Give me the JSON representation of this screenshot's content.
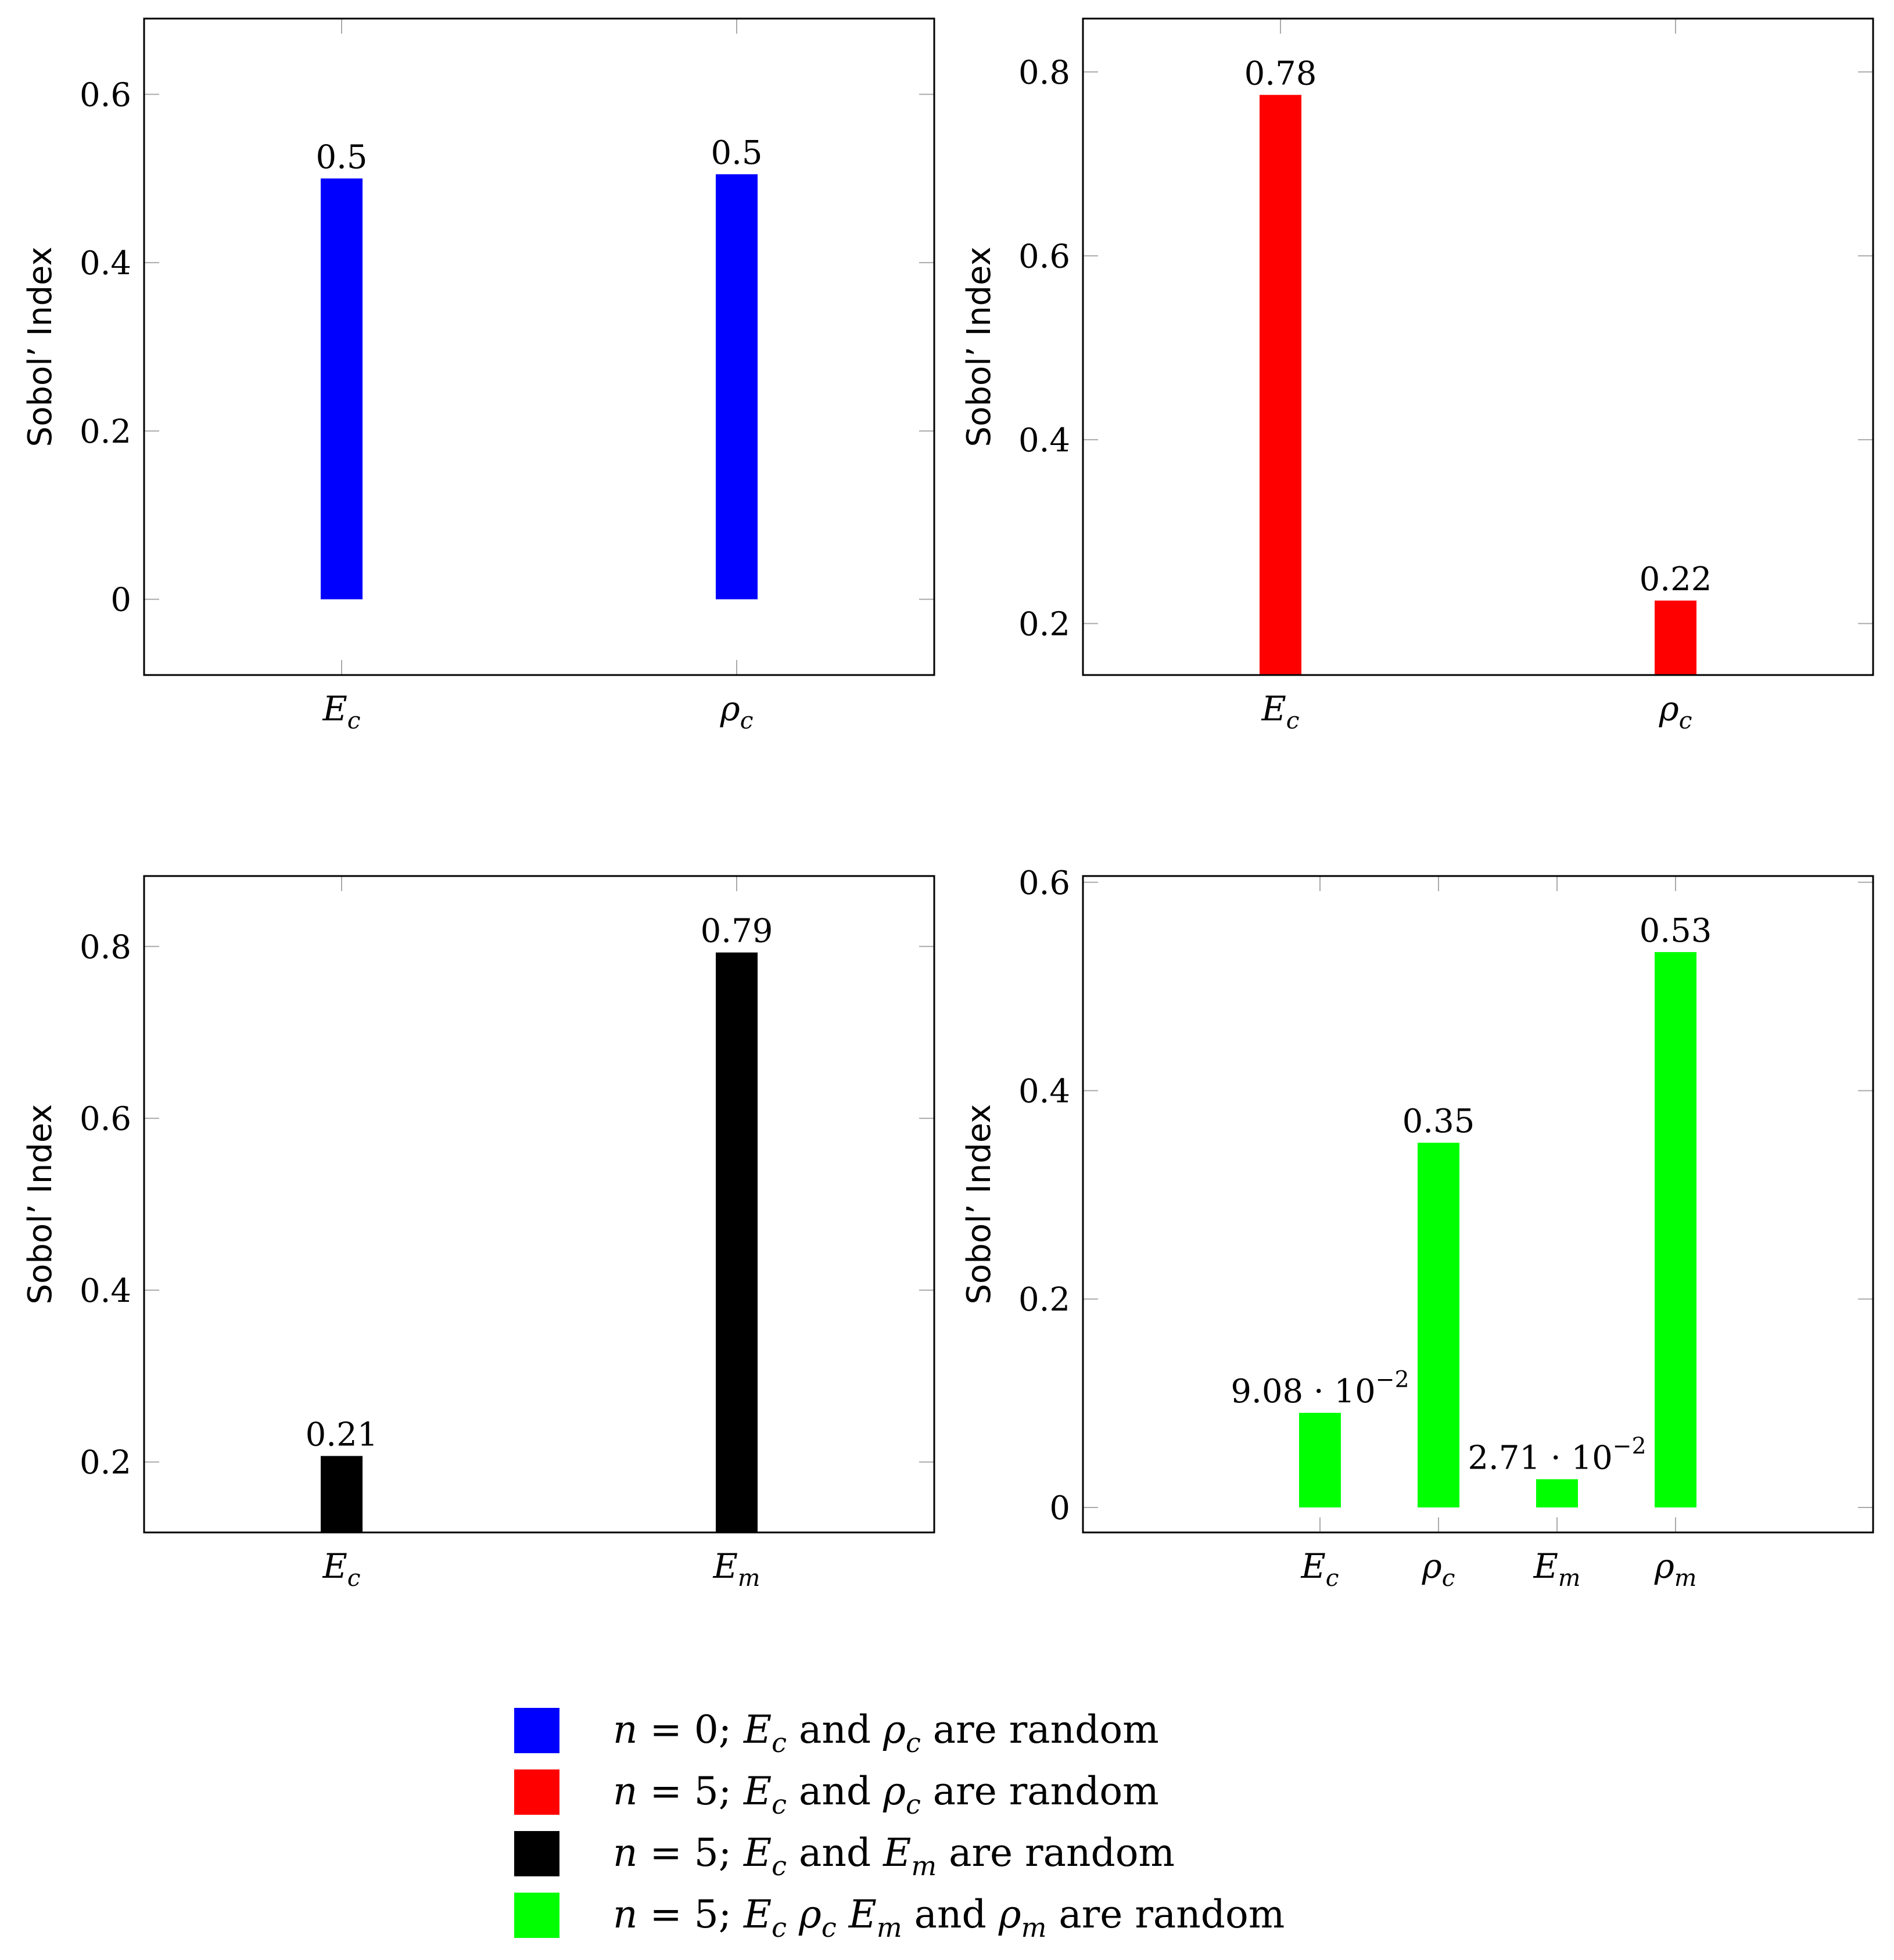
{
  "chart_data": [
    {
      "type": "bar",
      "panel": "top-left",
      "color": "#0000ff",
      "ylabel": "Sobol’ Index",
      "ylim": [
        -0.09,
        0.69
      ],
      "yticks": [
        0,
        0.2,
        0.4,
        0.6
      ],
      "ytick_labels": [
        "0",
        "0.2",
        "0.4",
        "0.6"
      ],
      "xlim": [
        0.5,
        2.5
      ],
      "categories": [
        {
          "x": 1,
          "base": "E",
          "sub": "c"
        },
        {
          "x": 2,
          "base": "ρ",
          "sub": "c"
        }
      ],
      "values": [
        0.5,
        0.505
      ],
      "bar_labels": [
        {
          "text": "0.5",
          "exp": ""
        },
        {
          "text": "0.5",
          "exp": ""
        }
      ]
    },
    {
      "type": "bar",
      "panel": "top-right",
      "color": "#ff0000",
      "ylabel": "Sobol’ Index",
      "ylim": [
        0.144,
        0.858
      ],
      "yticks": [
        0.2,
        0.4,
        0.6,
        0.8
      ],
      "ytick_labels": [
        "0.2",
        "0.4",
        "0.6",
        "0.8"
      ],
      "xlim": [
        0.5,
        2.5
      ],
      "categories": [
        {
          "x": 1,
          "base": "E",
          "sub": "c"
        },
        {
          "x": 2,
          "base": "ρ",
          "sub": "c"
        }
      ],
      "values": [
        0.775,
        0.225
      ],
      "bar_labels": [
        {
          "text": "0.78",
          "exp": ""
        },
        {
          "text": "0.22",
          "exp": ""
        }
      ]
    },
    {
      "type": "bar",
      "panel": "bottom-left",
      "color": "#000000",
      "ylabel": "Sobol’ Index",
      "ylim": [
        0.118,
        0.882
      ],
      "yticks": [
        0.2,
        0.4,
        0.6,
        0.8
      ],
      "ytick_labels": [
        "0.2",
        "0.4",
        "0.6",
        "0.8"
      ],
      "xlim": [
        0.5,
        2.5
      ],
      "categories": [
        {
          "x": 1,
          "base": "E",
          "sub": "c"
        },
        {
          "x": 2,
          "base": "E",
          "sub": "m"
        }
      ],
      "values": [
        0.207,
        0.793
      ],
      "bar_labels": [
        {
          "text": "0.21",
          "exp": ""
        },
        {
          "text": "0.79",
          "exp": ""
        }
      ]
    },
    {
      "type": "bar",
      "panel": "bottom-right",
      "color": "#00ff00",
      "ylabel": "Sobol’ Index",
      "ylim": [
        -0.024,
        0.606
      ],
      "yticks": [
        0,
        0.2,
        0.4,
        0.6
      ],
      "ytick_labels": [
        "0",
        "0.2",
        "0.4",
        "0.6"
      ],
      "xlim": [
        0.0,
        5.0
      ],
      "categories": [
        {
          "x": 1.5,
          "base": "E",
          "sub": "c"
        },
        {
          "x": 2.25,
          "base": "ρ",
          "sub": "c"
        },
        {
          "x": 3.0,
          "base": "E",
          "sub": "m"
        },
        {
          "x": 3.75,
          "base": "ρ",
          "sub": "m"
        }
      ],
      "values": [
        0.0908,
        0.35,
        0.0271,
        0.533
      ],
      "bar_labels": [
        {
          "text": "9.08 · 10",
          "exp": "−2"
        },
        {
          "text": "0.35",
          "exp": ""
        },
        {
          "text": "2.71 · 10",
          "exp": "−2"
        },
        {
          "text": "0.53",
          "exp": ""
        }
      ]
    }
  ],
  "legend": {
    "entries": [
      {
        "color": "#0000ff",
        "parts": [
          [
            "n",
            "i"
          ],
          [
            " = 0; ",
            ""
          ],
          [
            "E",
            "i"
          ],
          [
            "c",
            "s"
          ],
          [
            " and ",
            ""
          ],
          [
            "ρ",
            "i"
          ],
          [
            "c",
            "s"
          ],
          [
            " are random",
            ""
          ]
        ]
      },
      {
        "color": "#ff0000",
        "parts": [
          [
            "n",
            "i"
          ],
          [
            " = 5; ",
            ""
          ],
          [
            "E",
            "i"
          ],
          [
            "c",
            "s"
          ],
          [
            " and ",
            ""
          ],
          [
            "ρ",
            "i"
          ],
          [
            "c",
            "s"
          ],
          [
            " are random",
            ""
          ]
        ]
      },
      {
        "color": "#000000",
        "parts": [
          [
            "n",
            "i"
          ],
          [
            " = 5; ",
            ""
          ],
          [
            "E",
            "i"
          ],
          [
            "c",
            "s"
          ],
          [
            " and ",
            ""
          ],
          [
            "E",
            "i"
          ],
          [
            "m",
            "s"
          ],
          [
            " are random",
            ""
          ]
        ]
      },
      {
        "color": "#00ff00",
        "parts": [
          [
            "n",
            "i"
          ],
          [
            " = 5; ",
            ""
          ],
          [
            "E",
            "i"
          ],
          [
            "c",
            "s"
          ],
          [
            " ",
            ""
          ],
          [
            "ρ",
            "i"
          ],
          [
            "c",
            "s"
          ],
          [
            " ",
            ""
          ],
          [
            "E",
            "i"
          ],
          [
            "m",
            "s"
          ],
          [
            " and ",
            ""
          ],
          [
            "ρ",
            "i"
          ],
          [
            "m",
            "s"
          ],
          [
            " are random",
            ""
          ]
        ]
      }
    ]
  }
}
